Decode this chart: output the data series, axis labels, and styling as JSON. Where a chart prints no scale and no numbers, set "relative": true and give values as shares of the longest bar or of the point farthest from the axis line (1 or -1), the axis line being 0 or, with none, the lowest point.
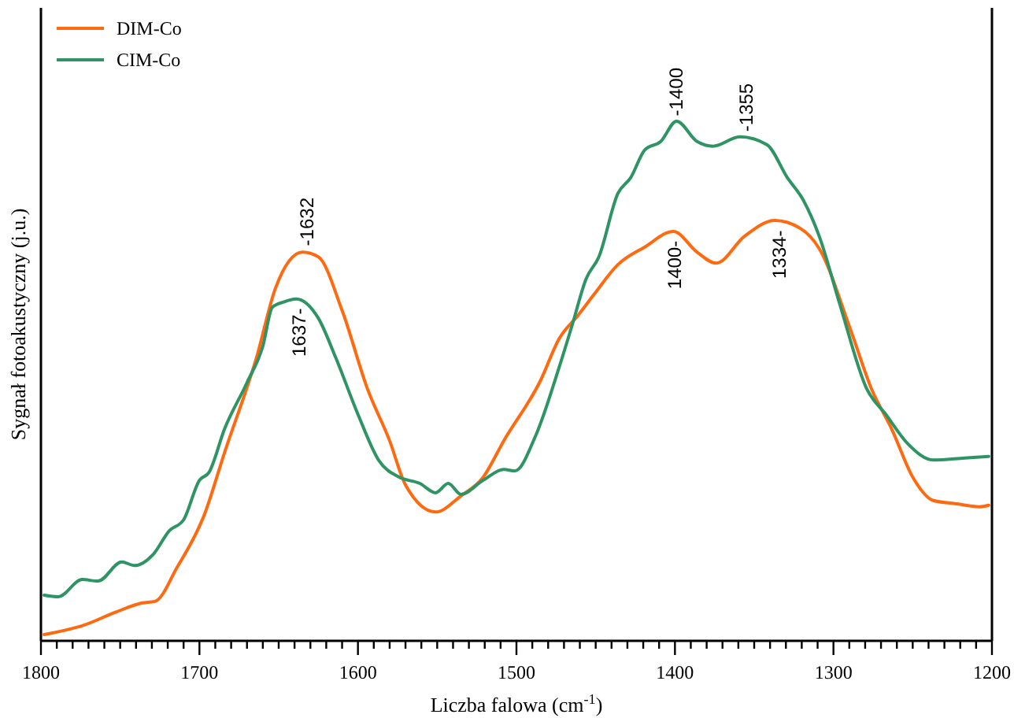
{
  "chart_data": {
    "type": "line",
    "relative": true,
    "xlabel": "Liczba falowa (cm$^{-1}$)",
    "ylabel": "Sygnał fotoakustyczny (j.u.)",
    "legend": "top left",
    "marker": "none",
    "line_style": "solid",
    "xlim": [
      1800,
      1200
    ],
    "xticks": [
      1800,
      {
        "value": 1790,
        "label": null
      },
      {
        "value": 1780,
        "label": null
      },
      {
        "value": 1770,
        "label": null
      },
      {
        "value": 1760,
        "label": null
      },
      {
        "value": 1750,
        "label": null
      },
      {
        "value": 1740,
        "label": null
      },
      {
        "value": 1730,
        "label": null
      },
      {
        "value": 1720,
        "label": null
      },
      {
        "value": 1710,
        "label": null
      },
      1700,
      {
        "value": 1690,
        "label": null
      },
      {
        "value": 1680,
        "label": null
      },
      {
        "value": 1670,
        "label": null
      },
      {
        "value": 1660,
        "label": null
      },
      {
        "value": 1650,
        "label": null
      },
      {
        "value": 1640,
        "label": null
      },
      {
        "value": 1630,
        "label": null
      },
      {
        "value": 1620,
        "label": null
      },
      {
        "value": 1610,
        "label": null
      },
      1600,
      {
        "value": 1590,
        "label": null
      },
      {
        "value": 1580,
        "label": null
      },
      {
        "value": 1570,
        "label": null
      },
      {
        "value": 1560,
        "label": null
      },
      {
        "value": 1550,
        "label": null
      },
      {
        "value": 1540,
        "label": null
      },
      {
        "value": 1530,
        "label": null
      },
      {
        "value": 1520,
        "label": null
      },
      {
        "value": 1510,
        "label": null
      },
      1500,
      {
        "value": 1490,
        "label": null
      },
      {
        "value": 1480,
        "label": null
      },
      {
        "value": 1470,
        "label": null
      },
      {
        "value": 1460,
        "label": null
      },
      {
        "value": 1450,
        "label": null
      },
      {
        "value": 1440,
        "label": null
      },
      {
        "value": 1430,
        "label": null
      },
      {
        "value": 1420,
        "label": null
      },
      {
        "value": 1410,
        "label": null
      },
      1400,
      {
        "value": 1390,
        "label": null
      },
      {
        "value": 1380,
        "label": null
      },
      {
        "value": 1370,
        "label": null
      },
      {
        "value": 1360,
        "label": null
      },
      {
        "value": 1350,
        "label": null
      },
      {
        "value": 1340,
        "label": null
      },
      {
        "value": 1330,
        "label": null
      },
      {
        "value": 1320,
        "label": null
      },
      {
        "value": 1310,
        "label": null
      },
      1300,
      {
        "value": 1290,
        "label": null
      },
      {
        "value": 1280,
        "label": null
      },
      {
        "value": 1270,
        "label": null
      },
      {
        "value": 1260,
        "label": null
      },
      {
        "value": 1250,
        "label": null
      },
      {
        "value": 1240,
        "label": null
      },
      {
        "value": 1230,
        "label": null
      },
      {
        "value": 1220,
        "label": null
      },
      {
        "value": 1210,
        "label": null
      },
      1200
    ],
    "series": [
      {
        "name": "DIM-Co",
        "color": "#ff6a10",
        "x": [
          1798,
          1773,
          1753,
          1736,
          1728,
          1714,
          1697,
          1684,
          1664,
          1652,
          1635,
          1625,
          1610,
          1594,
          1580,
          1570,
          1551,
          1535,
          1521,
          1508,
          1485,
          1473,
          1461,
          1451,
          1436,
          1419,
          1401,
          1386,
          1374,
          1356,
          1337,
          1321,
          1309,
          1289,
          1276,
          1263,
          1250,
          1237,
          1223,
          1208,
          1202
        ],
        "values": [
          0.012,
          0.03,
          0.055,
          0.073,
          0.076,
          0.142,
          0.242,
          0.364,
          0.545,
          0.679,
          0.748,
          0.739,
          0.636,
          0.485,
          0.385,
          0.3,
          0.248,
          0.279,
          0.315,
          0.385,
          0.5,
          0.582,
          0.627,
          0.667,
          0.724,
          0.758,
          0.788,
          0.748,
          0.727,
          0.779,
          0.809,
          0.794,
          0.755,
          0.597,
          0.485,
          0.406,
          0.315,
          0.27,
          0.264,
          0.258,
          0.261
        ]
      },
      {
        "name": "CIM-Co",
        "color": "#2e9464",
        "x": [
          1798,
          1789,
          1774,
          1764,
          1749,
          1741,
          1729,
          1719,
          1710,
          1700,
          1694,
          1684,
          1670,
          1660,
          1654,
          1647,
          1639,
          1625,
          1614,
          1600,
          1587,
          1574,
          1561,
          1551,
          1543,
          1535,
          1521,
          1508,
          1501,
          1488,
          1473,
          1465,
          1456,
          1448,
          1436,
          1428,
          1419,
          1409,
          1399,
          1386,
          1376,
          1359,
          1342,
          1329,
          1319,
          1309,
          1296,
          1279,
          1267,
          1253,
          1237,
          1217,
          1202
        ],
        "values": [
          0.088,
          0.085,
          0.118,
          0.115,
          0.152,
          0.145,
          0.167,
          0.212,
          0.233,
          0.309,
          0.324,
          0.409,
          0.497,
          0.567,
          0.642,
          0.652,
          0.658,
          0.621,
          0.545,
          0.436,
          0.348,
          0.315,
          0.303,
          0.285,
          0.303,
          0.282,
          0.309,
          0.33,
          0.327,
          0.394,
          0.527,
          0.606,
          0.697,
          0.739,
          0.861,
          0.891,
          0.945,
          0.961,
          1,
          0.961,
          0.952,
          0.97,
          0.955,
          0.891,
          0.848,
          0.779,
          0.648,
          0.485,
          0.436,
          0.379,
          0.348,
          0.352,
          0.355
        ]
      }
    ],
    "annotations": [
      {
        "text": "-1632",
        "x": 1632,
        "y": 0.76
      },
      {
        "text": "1637-",
        "x": 1637,
        "y": 0.64
      },
      {
        "text": "-1400",
        "x": 1399,
        "y": 1.01
      },
      {
        "text": "-1355",
        "x": 1355,
        "y": 0.98
      },
      {
        "text": "1400-",
        "x": 1400,
        "y": 0.77
      },
      {
        "text": "1334-",
        "x": 1334,
        "y": 0.79
      }
    ]
  }
}
